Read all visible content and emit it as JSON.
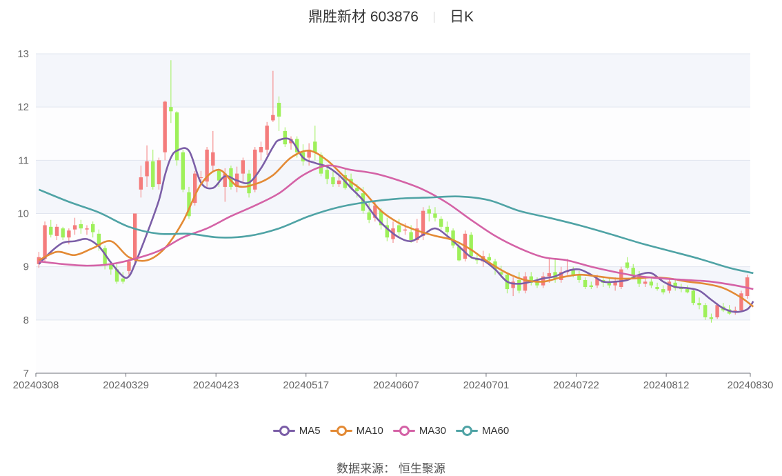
{
  "title": {
    "name": "鼎胜新材 603876",
    "period": "日K"
  },
  "source_label": "数据来源： 恒生聚源",
  "chart_data": {
    "type": "candlestick",
    "y_ticks": [
      "7",
      "8",
      "9",
      "10",
      "11",
      "12",
      "13"
    ],
    "ylim": [
      7,
      13
    ],
    "x_ticks": [
      "20240308",
      "20240329",
      "20240423",
      "20240517",
      "20240607",
      "20240701",
      "20240722",
      "20240812",
      "20240830"
    ],
    "x_tick_index": [
      0,
      15,
      30,
      45,
      60,
      75,
      90,
      105,
      119
    ],
    "up_color": "#f47c7c",
    "down_color": "#9ef05a",
    "candles": [
      [
        9.05,
        9.18,
        8.98,
        9.28
      ],
      [
        9.15,
        9.78,
        9.1,
        9.85
      ],
      [
        9.75,
        9.6,
        9.55,
        9.88
      ],
      [
        9.58,
        9.75,
        9.5,
        9.8
      ],
      [
        9.72,
        9.55,
        9.5,
        9.75
      ],
      [
        9.55,
        9.68,
        9.42,
        9.72
      ],
      [
        9.7,
        9.78,
        9.6,
        9.92
      ],
      [
        9.8,
        9.72,
        9.62,
        9.88
      ],
      [
        9.7,
        9.72,
        9.6,
        9.78
      ],
      [
        9.8,
        9.65,
        9.55,
        9.85
      ],
      [
        9.62,
        9.38,
        9.3,
        9.7
      ],
      [
        9.35,
        9.05,
        8.95,
        9.4
      ],
      [
        9.05,
        8.95,
        8.85,
        9.1
      ],
      [
        8.95,
        8.72,
        8.68,
        9.05
      ],
      [
        8.78,
        8.72,
        8.68,
        8.9
      ],
      [
        8.92,
        9.1,
        8.85,
        9.15
      ],
      [
        9.15,
        10.0,
        9.05,
        10.0
      ],
      [
        10.45,
        10.68,
        10.3,
        10.9
      ],
      [
        10.7,
        10.98,
        10.5,
        11.28
      ],
      [
        10.98,
        10.5,
        10.45,
        11.2
      ],
      [
        10.55,
        11.0,
        10.45,
        11.05
      ],
      [
        11.15,
        12.1,
        11.0,
        12.12
      ],
      [
        12.0,
        11.92,
        11.7,
        12.88
      ],
      [
        11.9,
        11.0,
        10.9,
        11.92
      ],
      [
        11.15,
        10.45,
        10.4,
        11.2
      ],
      [
        10.4,
        9.95,
        9.9,
        10.5
      ],
      [
        10.2,
        10.75,
        10.15,
        10.8
      ],
      [
        10.68,
        10.68,
        10.6,
        10.8
      ],
      [
        10.6,
        11.2,
        10.5,
        11.25
      ],
      [
        10.9,
        11.15,
        10.78,
        11.55
      ],
      [
        10.8,
        10.62,
        10.5,
        10.85
      ],
      [
        10.5,
        10.75,
        10.22,
        10.85
      ],
      [
        10.85,
        10.5,
        10.45,
        10.9
      ],
      [
        10.5,
        10.75,
        10.4,
        10.88
      ],
      [
        10.75,
        11.0,
        10.6,
        11.05
      ],
      [
        10.75,
        10.38,
        10.3,
        10.82
      ],
      [
        10.45,
        11.2,
        10.4,
        11.25
      ],
      [
        11.15,
        11.25,
        11.0,
        11.35
      ],
      [
        11.2,
        11.65,
        11.1,
        11.72
      ],
      [
        11.75,
        11.85,
        11.72,
        12.68
      ],
      [
        12.08,
        11.82,
        11.55,
        12.2
      ],
      [
        11.55,
        11.3,
        11.25,
        11.62
      ],
      [
        11.32,
        11.4,
        11.2,
        11.45
      ],
      [
        11.4,
        11.15,
        11.05,
        11.45
      ],
      [
        11.15,
        10.98,
        10.9,
        11.3
      ],
      [
        11.05,
        11.2,
        10.9,
        11.32
      ],
      [
        11.35,
        11.15,
        11.0,
        11.65
      ],
      [
        11.1,
        10.75,
        10.7,
        11.15
      ],
      [
        10.82,
        10.65,
        10.55,
        10.9
      ],
      [
        10.68,
        10.55,
        10.5,
        10.8
      ],
      [
        10.55,
        10.62,
        10.5,
        10.75
      ],
      [
        10.72,
        10.48,
        10.45,
        10.85
      ],
      [
        10.65,
        10.48,
        10.45,
        10.75
      ],
      [
        10.48,
        10.42,
        10.3,
        10.55
      ],
      [
        10.38,
        10.05,
        10.0,
        10.5
      ],
      [
        10.02,
        9.88,
        9.82,
        10.2
      ],
      [
        9.92,
        10.15,
        9.85,
        10.22
      ],
      [
        10.05,
        9.78,
        9.7,
        10.1
      ],
      [
        9.78,
        9.55,
        9.48,
        9.92
      ],
      [
        9.52,
        9.72,
        9.45,
        9.85
      ],
      [
        9.78,
        9.65,
        9.55,
        9.9
      ],
      [
        9.68,
        9.7,
        9.6,
        9.82
      ],
      [
        9.65,
        9.5,
        9.45,
        9.78
      ],
      [
        9.5,
        9.72,
        9.45,
        9.9
      ],
      [
        9.58,
        10.05,
        9.5,
        10.12
      ],
      [
        10.08,
        10.0,
        9.85,
        10.15
      ],
      [
        10.0,
        9.92,
        9.85,
        10.12
      ],
      [
        9.9,
        9.75,
        9.7,
        9.95
      ],
      [
        9.75,
        9.65,
        9.58,
        9.85
      ],
      [
        9.68,
        9.4,
        9.35,
        9.72
      ],
      [
        9.38,
        9.12,
        9.1,
        9.45
      ],
      [
        9.15,
        9.62,
        9.1,
        9.68
      ],
      [
        9.6,
        9.2,
        9.15,
        9.65
      ],
      [
        9.15,
        9.12,
        9.05,
        9.25
      ],
      [
        9.1,
        9.2,
        9.0,
        9.3
      ],
      [
        9.18,
        9.12,
        9.05,
        9.25
      ],
      [
        9.1,
        8.95,
        8.85,
        9.15
      ],
      [
        8.9,
        8.85,
        8.8,
        9.02
      ],
      [
        8.85,
        8.58,
        8.5,
        8.88
      ],
      [
        8.6,
        8.72,
        8.45,
        8.8
      ],
      [
        8.75,
        8.55,
        8.5,
        8.9
      ],
      [
        8.55,
        8.82,
        8.5,
        8.9
      ],
      [
        8.82,
        8.7,
        8.65,
        8.9
      ],
      [
        8.72,
        8.65,
        8.6,
        8.8
      ],
      [
        8.65,
        8.82,
        8.6,
        8.9
      ],
      [
        8.82,
        8.88,
        8.7,
        9.15
      ],
      [
        8.9,
        8.78,
        8.7,
        9.15
      ],
      [
        8.75,
        8.9,
        8.7,
        9.0
      ],
      [
        8.9,
        8.92,
        8.85,
        9.15
      ],
      [
        8.95,
        8.85,
        8.8,
        9.0
      ],
      [
        8.85,
        8.75,
        8.7,
        8.92
      ],
      [
        8.75,
        8.62,
        8.58,
        8.8
      ],
      [
        8.65,
        8.62,
        8.58,
        8.72
      ],
      [
        8.65,
        8.78,
        8.6,
        8.85
      ],
      [
        8.75,
        8.7,
        8.62,
        8.82
      ],
      [
        8.72,
        8.65,
        8.6,
        8.78
      ],
      [
        8.65,
        8.72,
        8.55,
        8.8
      ],
      [
        8.62,
        8.95,
        8.58,
        9.0
      ],
      [
        9.08,
        8.98,
        8.95,
        9.18
      ],
      [
        8.98,
        8.82,
        8.78,
        9.05
      ],
      [
        8.85,
        8.68,
        8.62,
        8.92
      ],
      [
        8.68,
        8.72,
        8.62,
        8.8
      ],
      [
        8.72,
        8.65,
        8.6,
        8.78
      ],
      [
        8.62,
        8.58,
        8.55,
        8.7
      ],
      [
        8.58,
        8.52,
        8.48,
        8.65
      ],
      [
        8.55,
        8.72,
        8.5,
        8.78
      ],
      [
        8.7,
        8.6,
        8.55,
        8.75
      ],
      [
        8.6,
        8.58,
        8.52,
        8.68
      ],
      [
        8.58,
        8.52,
        8.5,
        8.65
      ],
      [
        8.55,
        8.32,
        8.28,
        8.6
      ],
      [
        8.32,
        8.28,
        8.2,
        8.42
      ],
      [
        8.28,
        8.05,
        8.0,
        8.32
      ],
      [
        8.05,
        8.02,
        7.95,
        8.12
      ],
      [
        8.05,
        8.28,
        8.02,
        8.32
      ],
      [
        8.25,
        8.18,
        8.15,
        8.32
      ],
      [
        8.2,
        8.12,
        8.1,
        8.28
      ],
      [
        8.15,
        8.18,
        8.1,
        8.25
      ],
      [
        8.18,
        8.5,
        8.15,
        8.55
      ],
      [
        8.45,
        8.8,
        8.4,
        8.85
      ]
    ],
    "series": [
      {
        "name": "MA5",
        "color": "#7b5ea7",
        "x": [
          0,
          2,
          4,
          6,
          8,
          10,
          12,
          14,
          15,
          16,
          18,
          20,
          21,
          22,
          23,
          25,
          27,
          29,
          31,
          33,
          35,
          37,
          39,
          40,
          42,
          44,
          46,
          48,
          50,
          52,
          54,
          56,
          58,
          60,
          62,
          64,
          66,
          68,
          70,
          72,
          74,
          76,
          78,
          80,
          82,
          84,
          86,
          88,
          90,
          92,
          94,
          96,
          98,
          100,
          102,
          104,
          106,
          108,
          110,
          112,
          114,
          116,
          118,
          119
        ],
        "values": [
          9.05,
          9.28,
          9.45,
          9.48,
          9.52,
          9.38,
          9.08,
          8.82,
          8.82,
          9.05,
          9.62,
          10.25,
          10.72,
          11.05,
          11.18,
          11.18,
          10.58,
          10.48,
          10.7,
          10.62,
          10.58,
          10.85,
          11.25,
          11.38,
          11.38,
          11.05,
          10.95,
          10.88,
          10.72,
          10.48,
          10.25,
          9.95,
          9.72,
          9.55,
          9.48,
          9.6,
          9.72,
          9.58,
          9.38,
          9.18,
          9.12,
          8.95,
          8.72,
          8.68,
          8.72,
          8.78,
          8.82,
          8.92,
          8.95,
          8.85,
          8.72,
          8.72,
          8.75,
          8.85,
          8.88,
          8.72,
          8.62,
          8.6,
          8.55,
          8.38,
          8.22,
          8.15,
          8.2,
          8.35
        ]
      },
      {
        "name": "MA10",
        "color": "#e38a35",
        "x": [
          0,
          3,
          6,
          9,
          12,
          15,
          18,
          21,
          24,
          27,
          30,
          33,
          36,
          39,
          42,
          45,
          48,
          51,
          54,
          57,
          60,
          63,
          66,
          69,
          72,
          75,
          78,
          81,
          84,
          87,
          90,
          93,
          96,
          99,
          102,
          105,
          108,
          111,
          114,
          117,
          119
        ],
        "values": [
          9.12,
          9.28,
          9.22,
          9.35,
          9.48,
          9.18,
          9.12,
          9.35,
          9.85,
          10.55,
          10.82,
          10.52,
          10.55,
          10.72,
          11.05,
          11.18,
          11.0,
          10.68,
          10.42,
          10.05,
          9.82,
          9.68,
          9.58,
          9.5,
          9.32,
          9.08,
          8.88,
          8.75,
          8.72,
          8.8,
          8.85,
          8.82,
          8.78,
          8.78,
          8.8,
          8.78,
          8.72,
          8.68,
          8.6,
          8.42,
          8.25
        ]
      },
      {
        "name": "MA30",
        "color": "#d462a6",
        "x": [
          0,
          4,
          8,
          12,
          16,
          20,
          24,
          28,
          32,
          36,
          40,
          44,
          48,
          52,
          56,
          60,
          64,
          68,
          72,
          76,
          80,
          84,
          88,
          92,
          96,
          100,
          104,
          108,
          112,
          116,
          119
        ],
        "values": [
          9.1,
          9.05,
          9.02,
          9.05,
          9.15,
          9.3,
          9.55,
          9.72,
          9.95,
          10.15,
          10.38,
          10.72,
          10.9,
          10.82,
          10.75,
          10.62,
          10.45,
          10.2,
          9.88,
          9.58,
          9.35,
          9.18,
          9.12,
          9.0,
          8.9,
          8.82,
          8.78,
          8.75,
          8.72,
          8.65,
          8.58
        ]
      },
      {
        "name": "MA60",
        "color": "#4fa3a5",
        "x": [
          0,
          5,
          10,
          15,
          20,
          25,
          30,
          35,
          40,
          45,
          50,
          55,
          60,
          65,
          70,
          75,
          80,
          85,
          90,
          95,
          100,
          105,
          110,
          115,
          119
        ],
        "values": [
          10.45,
          10.22,
          10.02,
          9.75,
          9.62,
          9.62,
          9.55,
          9.58,
          9.72,
          9.95,
          10.12,
          10.22,
          10.28,
          10.3,
          10.32,
          10.25,
          10.05,
          9.92,
          9.78,
          9.62,
          9.45,
          9.3,
          9.15,
          8.98,
          8.88
        ]
      }
    ]
  }
}
